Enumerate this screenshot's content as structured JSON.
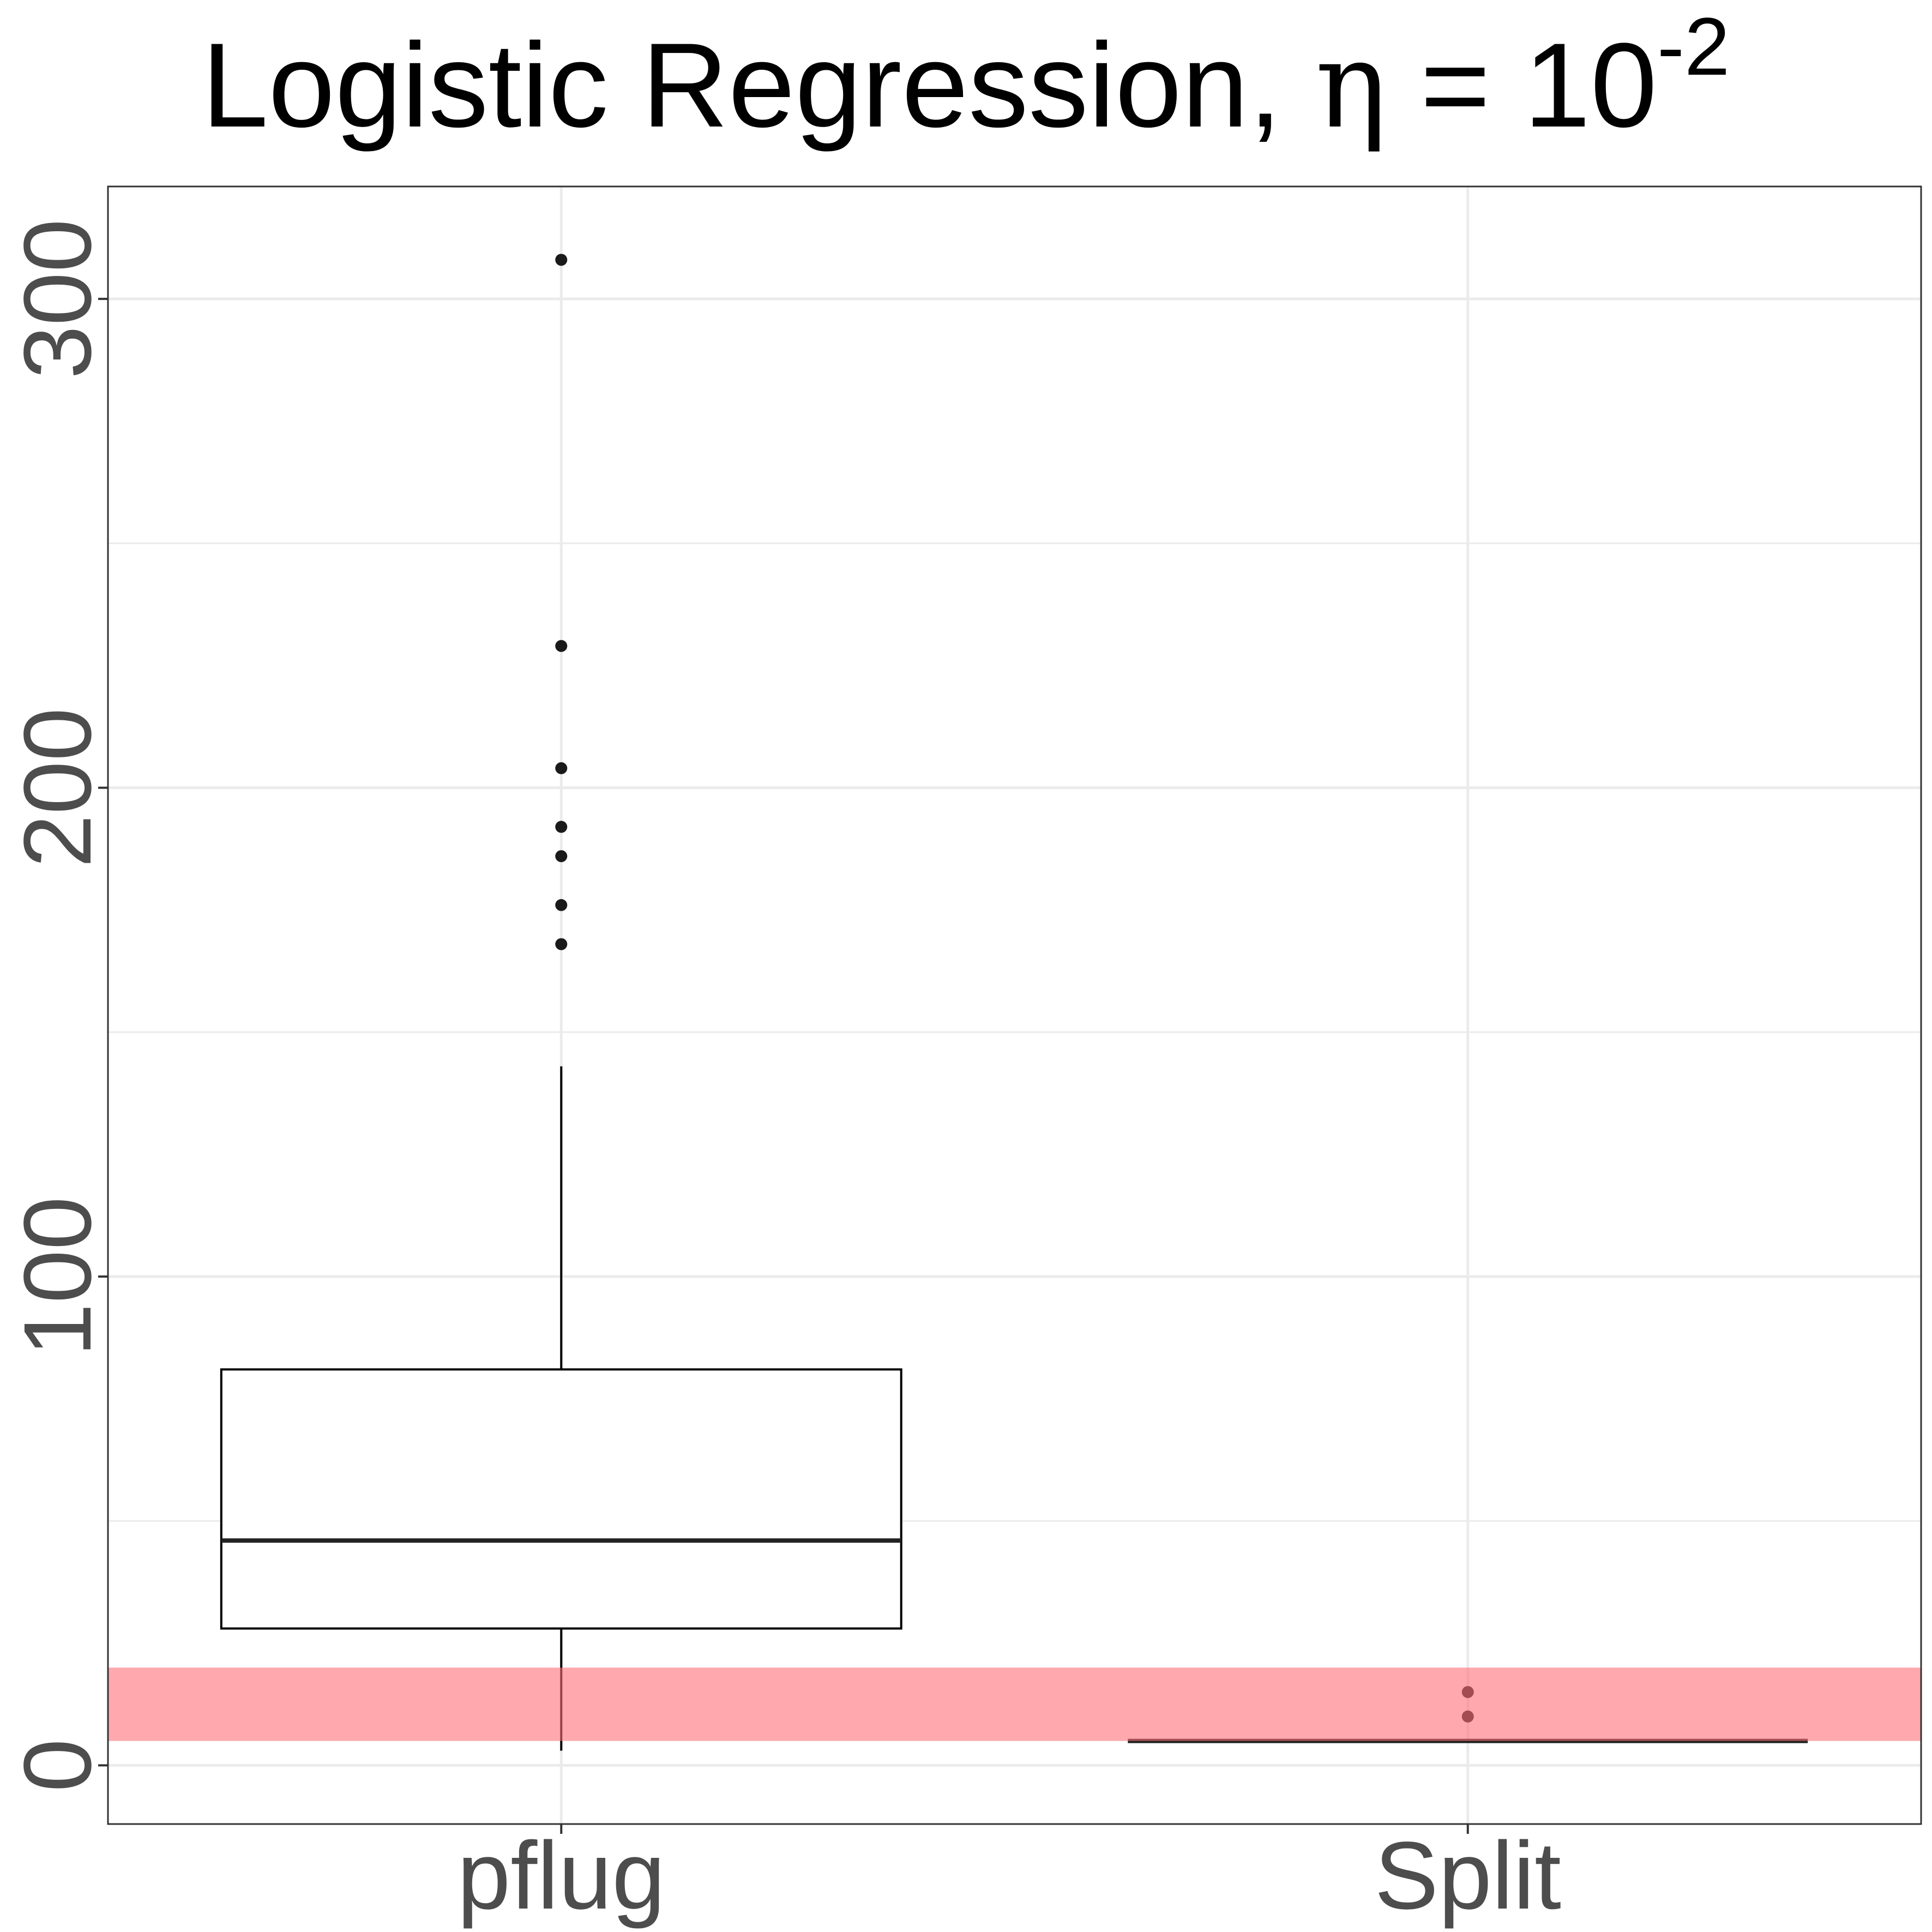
{
  "title": {
    "main": "Logistic Regression, ",
    "symbol": "η",
    "equals": " = 10",
    "exponent": "-2"
  },
  "chart_data": {
    "type": "boxplot",
    "title": "Logistic Regression, η = 10^-2",
    "xlabel": "",
    "ylabel": "",
    "categories": [
      "pflug",
      "Split"
    ],
    "ylim": [
      -12,
      323
    ],
    "yticks": [
      0,
      100,
      200,
      300
    ],
    "ytick_labels": [
      "0",
      "100",
      "200",
      "300"
    ],
    "grid": true,
    "boxes": [
      {
        "name": "pflug",
        "min": 3,
        "q1": 28,
        "median": 46,
        "q3": 81,
        "max": 143,
        "outliers": [
          168,
          176,
          186,
          192,
          204,
          229,
          308
        ]
      },
      {
        "name": "Split",
        "min": 5,
        "q1": 5,
        "median": 5,
        "q3": 5,
        "max": 5,
        "outliers": [
          10,
          15
        ]
      }
    ],
    "band": {
      "from": 5,
      "to": 20,
      "color": "#ff6f7a",
      "opacity": 0.6
    },
    "colors": {
      "box_stroke": "#000000",
      "point": "#1a1a1a",
      "grid": "#ebebeb",
      "panel_border": "#333333"
    }
  }
}
